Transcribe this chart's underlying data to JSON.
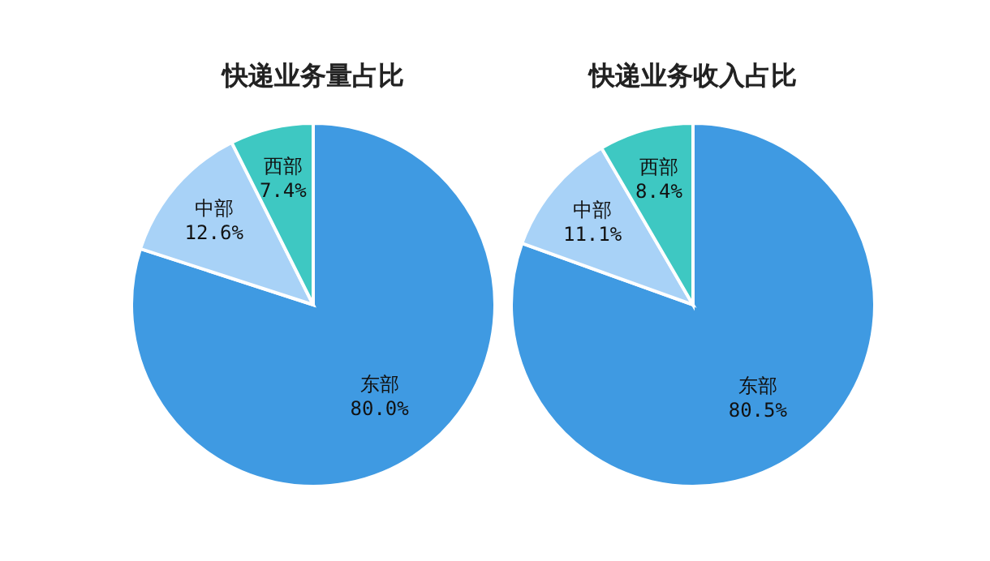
{
  "chart_data": [
    {
      "type": "pie",
      "title": "快递业务量占比",
      "categories": [
        "东部",
        "中部",
        "西部"
      ],
      "values": [
        80.0,
        12.6,
        7.4
      ],
      "colors": [
        "#3f9ae2",
        "#a8d2f7",
        "#3ec8c2"
      ],
      "value_labels": [
        "80.0%",
        "12.6%",
        "7.4%"
      ]
    },
    {
      "type": "pie",
      "title": "快递业务收入占比",
      "categories": [
        "东部",
        "中部",
        "西部"
      ],
      "values": [
        80.5,
        11.1,
        8.4
      ],
      "colors": [
        "#3f9ae2",
        "#a8d2f7",
        "#3ec8c2"
      ],
      "value_labels": [
        "80.5%",
        "11.1%",
        "8.4%"
      ]
    }
  ]
}
